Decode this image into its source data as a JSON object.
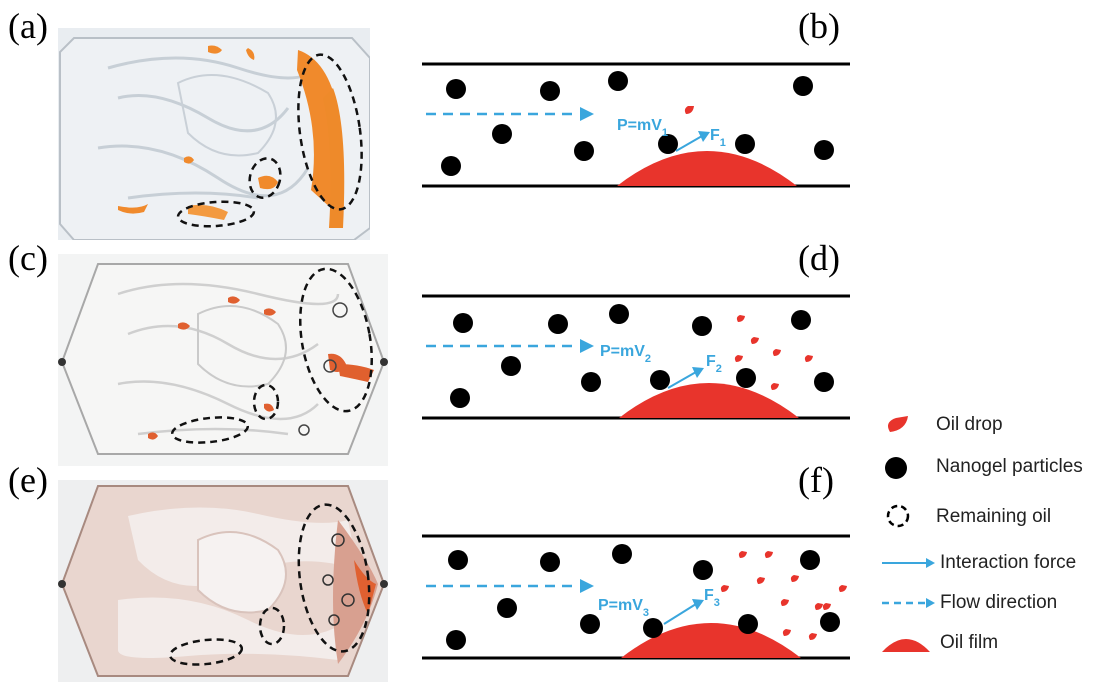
{
  "panel_labels": [
    "(a)",
    "(b)",
    "(c)",
    "(d)",
    "(e)",
    "(f)"
  ],
  "schematics": [
    {
      "p_main": "P=mV",
      "p_sub": "1",
      "f_main": "F",
      "f_sub": "1"
    },
    {
      "p_main": "P=mV",
      "p_sub": "2",
      "f_main": "F",
      "f_sub": "2"
    },
    {
      "p_main": "P=mV",
      "p_sub": "3",
      "f_main": "F",
      "f_sub": "3"
    }
  ],
  "legend": {
    "oil_drop": "Oil drop",
    "nanogel": "Nanogel particles",
    "remaining_oil": "Remaining oil",
    "interaction_force": "Interaction force",
    "flow_direction": "Flow direction",
    "oil_film": "Oil film"
  },
  "colors": {
    "oil": "#e8342c",
    "flow": "#3aa6dd",
    "particle": "#000000",
    "photo_oil_a": "#f08a2c",
    "photo_oil_ce": "#e06030"
  },
  "icons": [
    "oil-drop-icon",
    "nanogel-particle-icon",
    "dashed-circle-icon",
    "arrow-icon",
    "dashed-arrow-icon",
    "oil-film-icon"
  ]
}
